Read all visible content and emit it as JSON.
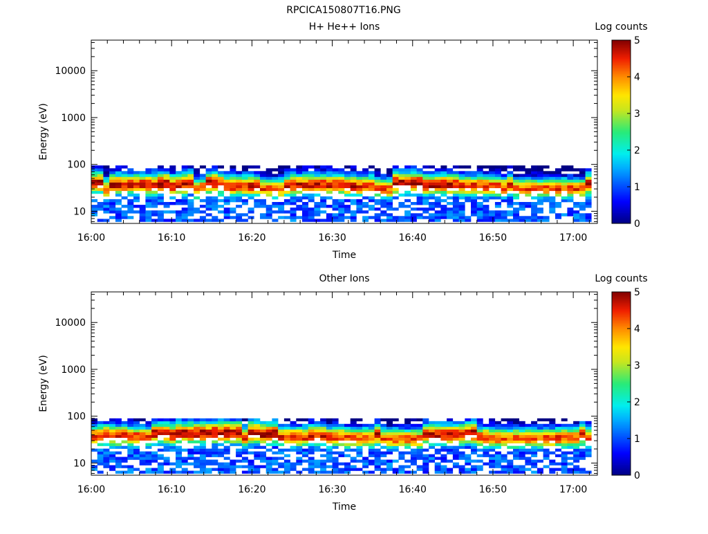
{
  "figure_title": "RPCICA150807T16.PNG",
  "chart_data": [
    {
      "type": "heatmap",
      "title": "H+ He++ Ions",
      "xlabel": "Time",
      "ylabel": "Energy (eV)",
      "colorbar_label": "Log counts",
      "x_ticks": [
        "16:00",
        "16:10",
        "16:20",
        "16:30",
        "16:40",
        "16:50",
        "17:00"
      ],
      "y_ticks": [
        "10",
        "100",
        "1000",
        "10000"
      ],
      "y_scale": "log",
      "x_range": [
        "16:00",
        "17:03"
      ],
      "y_range_eV": [
        5.5,
        45000
      ],
      "colorbar_range": [
        0,
        5
      ],
      "colorbar_ticks": [
        "0",
        "1",
        "2",
        "3",
        "4",
        "5"
      ],
      "colormap": "rainbow",
      "energy_band_eV": [
        6,
        95
      ],
      "peak_energy_eV": 35,
      "seed": 7
    },
    {
      "type": "heatmap",
      "title": "Other Ions",
      "xlabel": "Time",
      "ylabel": "Energy (eV)",
      "colorbar_label": "Log counts",
      "x_ticks": [
        "16:00",
        "16:10",
        "16:20",
        "16:30",
        "16:40",
        "16:50",
        "17:00"
      ],
      "y_ticks": [
        "10",
        "100",
        "1000",
        "10000"
      ],
      "y_scale": "log",
      "x_range": [
        "16:00",
        "17:03"
      ],
      "y_range_eV": [
        5.5,
        45000
      ],
      "colorbar_range": [
        0,
        5
      ],
      "colorbar_ticks": [
        "0",
        "1",
        "2",
        "3",
        "4",
        "5"
      ],
      "colormap": "rainbow",
      "energy_band_eV": [
        6,
        90
      ],
      "peak_energy_eV": 38,
      "seed": 13
    }
  ]
}
